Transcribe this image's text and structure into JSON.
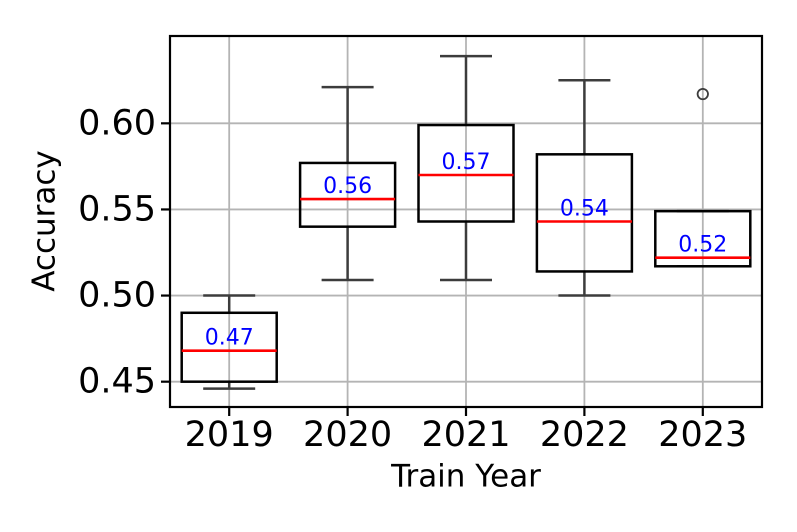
{
  "chart_data": {
    "type": "boxplot",
    "title": "",
    "xlabel": "Train Year",
    "ylabel": "Accuracy",
    "categories": [
      "2019",
      "2020",
      "2021",
      "2022",
      "2023"
    ],
    "ytick_values": [
      0.45,
      0.5,
      0.55,
      0.6
    ],
    "ytick_labels": [
      "0.45",
      "0.50",
      "0.55",
      "0.60"
    ],
    "ylim": [
      0.4353,
      0.6507
    ],
    "grid": true,
    "legend": "none",
    "series": [
      {
        "category": "2019",
        "whisker_low": 0.446,
        "q1": 0.45,
        "median": 0.468,
        "q3": 0.49,
        "whisker_high": 0.5,
        "median_label": "0.47",
        "outliers": []
      },
      {
        "category": "2020",
        "whisker_low": 0.509,
        "q1": 0.54,
        "median": 0.556,
        "q3": 0.577,
        "whisker_high": 0.621,
        "median_label": "0.56",
        "outliers": []
      },
      {
        "category": "2021",
        "whisker_low": 0.509,
        "q1": 0.543,
        "median": 0.57,
        "q3": 0.599,
        "whisker_high": 0.639,
        "median_label": "0.57",
        "outliers": []
      },
      {
        "category": "2022",
        "whisker_low": 0.5,
        "q1": 0.514,
        "median": 0.543,
        "q3": 0.582,
        "whisker_high": 0.625,
        "median_label": "0.54",
        "outliers": []
      },
      {
        "category": "2023",
        "whisker_low": 0.517,
        "q1": 0.517,
        "median": 0.522,
        "q3": 0.549,
        "whisker_high": 0.549,
        "median_label": "0.52",
        "outliers": [
          0.617
        ]
      }
    ],
    "colors": {
      "background": "#ffffff",
      "box_edge": "#000000",
      "whisker": "#3c3c3c",
      "cap": "#3c3c3c",
      "median_line": "#ff0000",
      "median_label": "#0000ff",
      "outlier_edge": "#3c3c3c",
      "grid": "#b4b4b4",
      "spine": "#000000",
      "tick": "#000000",
      "text": "#000000"
    }
  }
}
